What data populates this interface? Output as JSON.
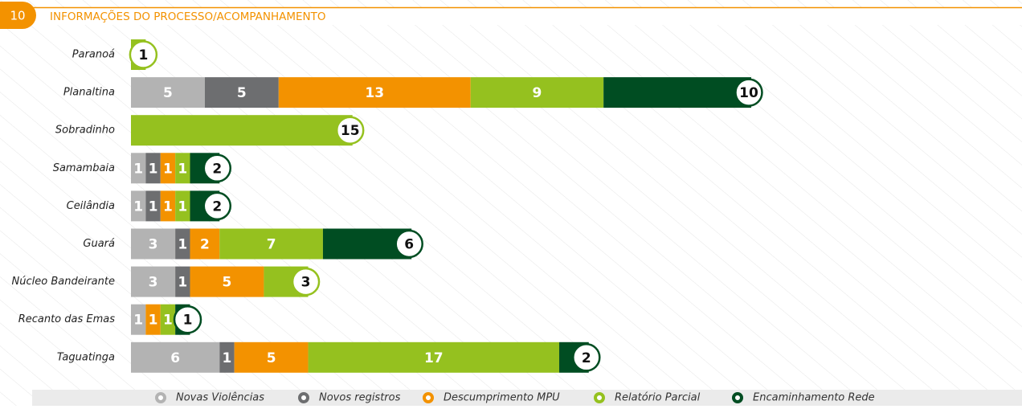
{
  "section": "10",
  "chart_data": {
    "type": "stacked-bar-horizontal",
    "title": "INFORMAÇÕES DO PROCESSO/ACOMPANHAMENTO",
    "categories": [
      "Paranoá",
      "Planaltina",
      "Sobradinho",
      "Samambaia",
      "Ceilândia",
      "Guará",
      "Núcleo Bandeirante",
      "Recanto das Emas",
      "Taguatinga"
    ],
    "series": [
      {
        "name": "Novas Violências",
        "color": "#b3b3b3",
        "values": [
          null,
          5,
          null,
          1,
          1,
          3,
          3,
          1,
          6
        ]
      },
      {
        "name": "Novos registros",
        "color": "#6d6e70",
        "values": [
          null,
          5,
          null,
          1,
          1,
          1,
          1,
          null,
          1
        ]
      },
      {
        "name": "Descumprimento MPU",
        "color": "#f39200",
        "values": [
          null,
          13,
          null,
          1,
          1,
          2,
          5,
          1,
          5
        ]
      },
      {
        "name": "Relatório Parcial",
        "color": "#95c11f",
        "values": [
          1,
          9,
          15,
          1,
          1,
          7,
          3,
          1,
          17
        ]
      },
      {
        "name": "Encaminhamento Rede",
        "color": "#004d22",
        "values": [
          null,
          10,
          null,
          2,
          2,
          6,
          null,
          1,
          2
        ]
      }
    ],
    "legend": "bottom"
  }
}
